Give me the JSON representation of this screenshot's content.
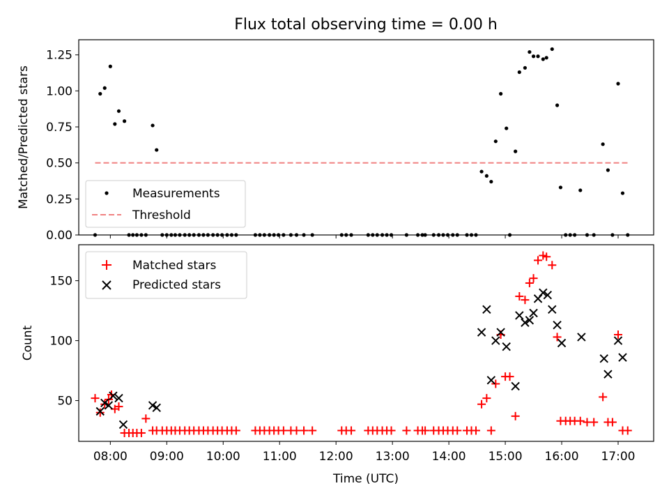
{
  "title": "Flux total observing time = 0.00 h",
  "colors": {
    "threshold": "#f08080",
    "matched": "#ff0000",
    "predicted": "#000000",
    "measurement": "#000000",
    "axis": "#000000",
    "legend_border": "#cccccc"
  },
  "x_axis": {
    "label": "Time (UTC)",
    "ticks": [
      {
        "label": "08:00",
        "value": 8
      },
      {
        "label": "09:00",
        "value": 9
      },
      {
        "label": "10:00",
        "value": 10
      },
      {
        "label": "11:00",
        "value": 11
      },
      {
        "label": "12:00",
        "value": 12
      },
      {
        "label": "13:00",
        "value": 13
      },
      {
        "label": "14:00",
        "value": 14
      },
      {
        "label": "15:00",
        "value": 15
      },
      {
        "label": "16:00",
        "value": 16
      },
      {
        "label": "17:00",
        "value": 17
      }
    ]
  },
  "chart_data": [
    {
      "type": "scatter",
      "ylabel": "Matched/Predicted stars",
      "xlim": [
        7.44,
        17.63
      ],
      "ylim": [
        0,
        1.355
      ],
      "yticks": [
        "0.00",
        "0.25",
        "0.50",
        "0.75",
        "1.00",
        "1.25"
      ],
      "legend_placement": "lower-left",
      "series": [
        {
          "name": "Measurements",
          "kind": "dots",
          "x": [
            7.73,
            7.82,
            7.9,
            8.0,
            8.08,
            8.15,
            8.25,
            8.33,
            8.4,
            8.47,
            8.55,
            8.63,
            8.75,
            8.82,
            8.92,
            9.0,
            9.08,
            9.15,
            9.23,
            9.32,
            9.4,
            9.48,
            9.57,
            9.65,
            9.73,
            9.82,
            9.9,
            9.98,
            10.07,
            10.15,
            10.23,
            10.57,
            10.65,
            10.73,
            10.82,
            10.9,
            10.98,
            11.07,
            11.2,
            11.3,
            11.43,
            11.58,
            12.1,
            12.18,
            12.27,
            12.57,
            12.65,
            12.73,
            12.82,
            12.9,
            12.98,
            13.25,
            13.45,
            13.53,
            13.58,
            13.73,
            13.82,
            13.9,
            13.98,
            14.07,
            14.15,
            14.32,
            14.4,
            14.48,
            14.58,
            14.67,
            14.75,
            14.83,
            14.92,
            15.02,
            15.08,
            15.18,
            15.25,
            15.35,
            15.43,
            15.5,
            15.58,
            15.67,
            15.73,
            15.83,
            15.92,
            15.98,
            16.07,
            16.15,
            16.23,
            16.33,
            16.45,
            16.57,
            16.73,
            16.82,
            16.9,
            17.0,
            17.08,
            17.17
          ],
          "y": [
            0.0,
            0.98,
            1.02,
            1.17,
            0.77,
            0.86,
            0.79,
            0.0,
            0.0,
            0.0,
            0.0,
            0.0,
            0.76,
            0.59,
            0.0,
            0.0,
            0.0,
            0.0,
            0.0,
            0.0,
            0.0,
            0.0,
            0.0,
            0.0,
            0.0,
            0.0,
            0.0,
            0.0,
            0.0,
            0.0,
            0.0,
            0.0,
            0.0,
            0.0,
            0.0,
            0.0,
            0.0,
            0.0,
            0.0,
            0.0,
            0.0,
            0.0,
            0.0,
            0.0,
            0.0,
            0.0,
            0.0,
            0.0,
            0.0,
            0.0,
            0.0,
            0.0,
            0.0,
            0.0,
            0.0,
            0.0,
            0.0,
            0.0,
            0.0,
            0.0,
            0.0,
            0.0,
            0.0,
            0.0,
            0.44,
            0.41,
            0.37,
            0.65,
            0.98,
            0.74,
            0.0,
            0.58,
            1.13,
            1.16,
            1.27,
            1.24,
            1.24,
            1.22,
            1.23,
            1.29,
            0.9,
            0.33,
            0.0,
            0.0,
            0.0,
            0.31,
            0.0,
            0.0,
            0.63,
            0.45,
            0.0,
            1.05,
            0.29,
            0.0
          ]
        },
        {
          "name": "Threshold",
          "kind": "dashed-line",
          "x": [
            7.73,
            17.17
          ],
          "y": [
            0.5,
            0.5
          ]
        }
      ]
    },
    {
      "type": "scatter",
      "ylabel": "Count",
      "xlim": [
        7.44,
        17.63
      ],
      "ylim": [
        16,
        180
      ],
      "yticks": [
        "50",
        "100",
        "150"
      ],
      "ytick_values": [
        50,
        100,
        150
      ],
      "legend_placement": "upper-left",
      "series": [
        {
          "name": "Matched stars",
          "kind": "plus",
          "x": [
            7.73,
            7.82,
            7.9,
            7.97,
            8.02,
            8.08,
            8.15,
            8.25,
            8.33,
            8.4,
            8.47,
            8.55,
            8.63,
            8.75,
            8.82,
            8.92,
            9.0,
            9.08,
            9.15,
            9.23,
            9.32,
            9.4,
            9.48,
            9.57,
            9.65,
            9.73,
            9.82,
            9.9,
            9.98,
            10.07,
            10.15,
            10.23,
            10.57,
            10.65,
            10.73,
            10.82,
            10.9,
            10.98,
            11.07,
            11.2,
            11.3,
            11.43,
            11.58,
            12.1,
            12.18,
            12.27,
            12.57,
            12.65,
            12.73,
            12.82,
            12.9,
            12.98,
            13.25,
            13.45,
            13.53,
            13.58,
            13.73,
            13.82,
            13.9,
            13.98,
            14.07,
            14.15,
            14.32,
            14.4,
            14.48,
            14.58,
            14.67,
            14.75,
            14.83,
            14.92,
            15.0,
            15.08,
            15.18,
            15.25,
            15.35,
            15.43,
            15.5,
            15.58,
            15.67,
            15.73,
            15.83,
            15.92,
            15.98,
            16.07,
            16.15,
            16.23,
            16.33,
            16.45,
            16.57,
            16.73,
            16.82,
            16.9,
            17.0,
            17.08,
            17.17
          ],
          "y": [
            52,
            40,
            47,
            51,
            55,
            43,
            45,
            23,
            23,
            23,
            23,
            23,
            35,
            25,
            25,
            25,
            25,
            25,
            25,
            25,
            25,
            25,
            25,
            25,
            25,
            25,
            25,
            25,
            25,
            25,
            25,
            25,
            25,
            25,
            25,
            25,
            25,
            25,
            25,
            25,
            25,
            25,
            25,
            25,
            25,
            25,
            25,
            25,
            25,
            25,
            25,
            25,
            25,
            25,
            25,
            25,
            25,
            25,
            25,
            25,
            25,
            25,
            25,
            25,
            25,
            47,
            52,
            25,
            64,
            105,
            70,
            70,
            37,
            137,
            134,
            148,
            152,
            167,
            171,
            170,
            163,
            103,
            33,
            33,
            33,
            33,
            33,
            32,
            32,
            53,
            32,
            32,
            105,
            25,
            25
          ]
        },
        {
          "name": "Predicted stars",
          "kind": "x",
          "x": [
            7.82,
            7.9,
            7.97,
            8.05,
            8.15,
            8.23,
            8.75,
            8.82,
            14.58,
            14.67,
            14.75,
            14.83,
            14.92,
            15.02,
            15.18,
            15.25,
            15.35,
            15.43,
            15.5,
            15.58,
            15.67,
            15.75,
            15.83,
            15.92,
            16.0,
            16.35,
            16.75,
            16.82,
            17.0,
            17.08
          ],
          "y": [
            41,
            48,
            46,
            54,
            52,
            30,
            46,
            44,
            107,
            126,
            67,
            100,
            107,
            95,
            62,
            121,
            115,
            117,
            123,
            135,
            140,
            138,
            126,
            113,
            98,
            103,
            85,
            72,
            100,
            86
          ]
        }
      ]
    }
  ]
}
